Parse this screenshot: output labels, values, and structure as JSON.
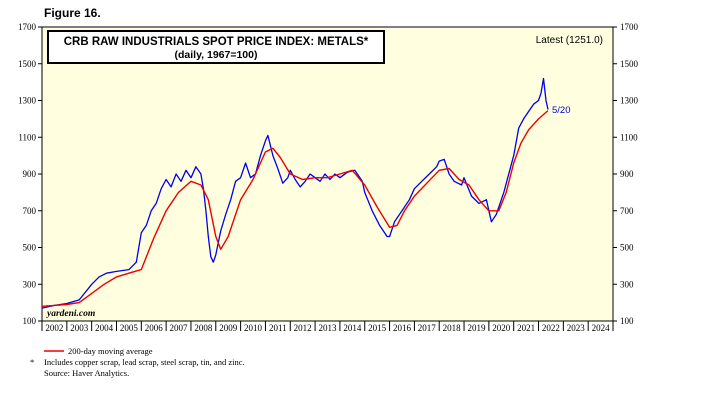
{
  "figure_label": "Figure 16.",
  "latest": "Latest (1251.0)",
  "end_label": "5/20",
  "watermark": "yardeni.com",
  "footnotes": {
    "legend_ma": "200-day moving average",
    "asterisk": "*",
    "components": "Includes copper scrap, lead scrap, steel scrap, tin, and zinc.",
    "source": "Source: Haver Analytics."
  },
  "colors": {
    "index_line": "#0000ee",
    "ma_line": "#ee0000",
    "plot_bg": "#ffffe0"
  },
  "chart_data": {
    "type": "line",
    "title": "CRB RAW INDUSTRIALS SPOT PRICE INDEX: METALS*",
    "subtitle": "(daily, 1967=100)",
    "xlim": [
      2002,
      2025
    ],
    "ylim": [
      100,
      1700
    ],
    "yticks": [
      100,
      300,
      500,
      700,
      900,
      1100,
      1300,
      1500,
      1700
    ],
    "xtick_labels": [
      "2002",
      "2003",
      "2004",
      "2005",
      "2006",
      "2007",
      "2008",
      "2009",
      "2010",
      "2011",
      "2012",
      "2013",
      "2014",
      "2015",
      "2016",
      "2017",
      "2018",
      "2019",
      "2020",
      "2021",
      "2022",
      "2023",
      "2024"
    ],
    "grid": false,
    "series": [
      {
        "name": "CRB Raw Industrials Spot Price Index: Metals",
        "x": [
          2002.0,
          2002.5,
          2003.0,
          2003.5,
          2004.0,
          2004.3,
          2004.6,
          2005.0,
          2005.5,
          2005.8,
          2006.0,
          2006.2,
          2006.4,
          2006.6,
          2006.8,
          2007.0,
          2007.2,
          2007.4,
          2007.6,
          2007.8,
          2008.0,
          2008.2,
          2008.4,
          2008.5,
          2008.6,
          2008.7,
          2008.8,
          2008.9,
          2009.0,
          2009.2,
          2009.4,
          2009.6,
          2009.8,
          2010.0,
          2010.2,
          2010.4,
          2010.6,
          2010.8,
          2011.0,
          2011.1,
          2011.3,
          2011.5,
          2011.7,
          2011.9,
          2012.0,
          2012.2,
          2012.4,
          2012.6,
          2012.8,
          2013.0,
          2013.2,
          2013.4,
          2013.6,
          2013.8,
          2014.0,
          2014.3,
          2014.6,
          2014.9,
          2015.0,
          2015.3,
          2015.6,
          2015.9,
          2016.0,
          2016.2,
          2016.5,
          2016.8,
          2017.0,
          2017.3,
          2017.6,
          2017.9,
          2018.0,
          2018.2,
          2018.4,
          2018.6,
          2018.9,
          2019.0,
          2019.3,
          2019.6,
          2019.9,
          2020.0,
          2020.1,
          2020.3,
          2020.6,
          2020.9,
          2021.0,
          2021.2,
          2021.4,
          2021.6,
          2021.8,
          2022.0,
          2022.1,
          2022.2,
          2022.3,
          2022.38
        ],
        "y": [
          170,
          185,
          195,
          215,
          300,
          340,
          360,
          370,
          380,
          420,
          580,
          620,
          700,
          740,
          820,
          870,
          830,
          900,
          860,
          920,
          880,
          940,
          900,
          820,
          700,
          560,
          450,
          420,
          460,
          590,
          680,
          760,
          860,
          880,
          960,
          880,
          900,
          1000,
          1080,
          1110,
          1000,
          930,
          850,
          880,
          920,
          870,
          830,
          860,
          900,
          880,
          860,
          900,
          870,
          900,
          880,
          910,
          920,
          860,
          800,
          700,
          620,
          560,
          560,
          640,
          700,
          760,
          820,
          860,
          900,
          940,
          970,
          980,
          900,
          860,
          840,
          880,
          780,
          740,
          760,
          700,
          640,
          680,
          800,
          950,
          1000,
          1150,
          1200,
          1240,
          1280,
          1300,
          1340,
          1420,
          1300,
          1251
        ]
      },
      {
        "name": "200-day moving average",
        "x": [
          2002.0,
          2002.5,
          2003.0,
          2003.5,
          2004.0,
          2004.5,
          2005.0,
          2005.5,
          2006.0,
          2006.5,
          2007.0,
          2007.5,
          2008.0,
          2008.4,
          2008.7,
          2009.0,
          2009.2,
          2009.5,
          2010.0,
          2010.5,
          2011.0,
          2011.3,
          2011.6,
          2012.0,
          2012.5,
          2013.0,
          2013.5,
          2014.0,
          2014.5,
          2015.0,
          2015.5,
          2016.0,
          2016.3,
          2016.6,
          2017.0,
          2017.5,
          2018.0,
          2018.4,
          2018.8,
          2019.2,
          2019.6,
          2020.0,
          2020.4,
          2020.7,
          2021.0,
          2021.3,
          2021.6,
          2022.0,
          2022.38
        ],
        "y": [
          180,
          185,
          190,
          200,
          250,
          300,
          340,
          360,
          380,
          550,
          700,
          800,
          860,
          840,
          760,
          560,
          490,
          560,
          760,
          870,
          1020,
          1040,
          990,
          900,
          870,
          880,
          880,
          900,
          920,
          840,
          720,
          610,
          620,
          700,
          780,
          850,
          920,
          930,
          870,
          840,
          760,
          700,
          700,
          800,
          960,
          1070,
          1140,
          1200,
          1245
        ]
      }
    ]
  }
}
